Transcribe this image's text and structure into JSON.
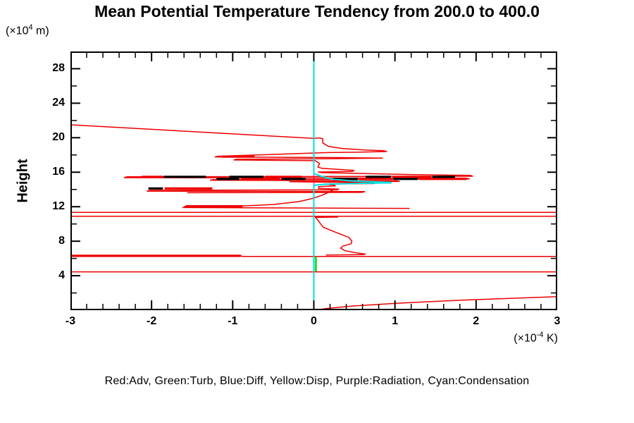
{
  "header": {
    "title": "Mean Potential Temperature Tendency from 200.0 to 400.0",
    "y_axis_units": {
      "prefix": "(×10",
      "sup": "4",
      "suffix": " m)"
    },
    "x_axis_units": {
      "prefix": "(×10",
      "sup": "-4",
      "suffix": " K)"
    }
  },
  "footer": {
    "legend": "Red:Adv, Green:Turb, Blue:Diff, Yellow:Disp, Purple:Radiation, Cyan:Condensation"
  },
  "colors": {
    "adv": "#ee0000",
    "turb": "#00dd00",
    "diff": "#000000",
    "radiation": "#cc77cc",
    "condensation": "#00e0e0",
    "axis": "#000000",
    "background": "#ffffff"
  },
  "chart_data": {
    "type": "line",
    "title": "Mean Potential Temperature Tendency from 200.0 to 400.0",
    "xlabel": "(x10^-4 K)",
    "ylabel": "Height",
    "ylabel_units": "(x10^4 m)",
    "xlim": [
      -3,
      3
    ],
    "ylim": [
      0,
      30
    ],
    "x_major_ticks": [
      -3,
      -2,
      -1,
      0,
      1,
      2,
      3
    ],
    "x_minor_step": 0.2,
    "y_major_ticks": [
      4,
      8,
      12,
      16,
      20,
      24,
      28
    ],
    "y_minor_step": 2,
    "grid": false,
    "legend_position": "bottom-text",
    "series": [
      {
        "name": "Radiation",
        "color": "#cc77cc",
        "width": 2,
        "polylines": [
          [
            [
              0.0,
              16.0
            ],
            [
              0.0,
              14.45
            ]
          ]
        ]
      },
      {
        "name": "Turb",
        "color": "#00dd00",
        "width": 2.5,
        "polylines": [
          [
            [
              0.025,
              6.15
            ],
            [
              0.025,
              4.4
            ]
          ]
        ]
      },
      {
        "name": "Adv",
        "color": "#ee0000",
        "width": 1.5,
        "polylines": [
          [
            [
              -3,
              21.5
            ],
            [
              -1.2,
              20.55
            ],
            [
              0,
              19.92
            ],
            [
              0.07,
              19.98
            ],
            [
              0.11,
              19.88
            ],
            [
              0.11,
              19.4
            ],
            [
              0.18,
              19.0
            ],
            [
              0.35,
              18.75
            ],
            [
              0.62,
              18.58
            ],
            [
              0.86,
              18.5
            ],
            [
              0.9,
              18.4
            ],
            [
              0.55,
              18.32
            ],
            [
              0.18,
              18.28
            ],
            [
              -1.18,
              17.85
            ],
            [
              -1.22,
              17.77
            ],
            [
              0.3,
              17.7
            ],
            [
              0.85,
              17.63
            ],
            [
              0.2,
              17.57
            ],
            [
              -0.95,
              17.5
            ],
            [
              -0.99,
              17.42
            ],
            [
              0.02,
              17.34
            ],
            [
              0.07,
              17.0
            ],
            [
              0.05,
              16.6
            ],
            [
              0.1,
              16.45
            ],
            [
              0.5,
              16.2
            ],
            [
              0.47,
              16.08
            ],
            [
              0.05,
              16.02
            ],
            [
              0.1,
              15.95
            ],
            [
              0.6,
              15.85
            ],
            [
              1.2,
              15.73
            ],
            [
              1.93,
              15.63
            ],
            [
              1.96,
              15.53
            ],
            [
              -2.3,
              15.47
            ],
            [
              -2.34,
              15.37
            ],
            [
              1.88,
              15.31
            ],
            [
              1.92,
              15.21
            ],
            [
              -1.24,
              15.15
            ],
            [
              -1.28,
              15.07
            ],
            [
              1.02,
              15.0
            ],
            [
              1.06,
              14.93
            ],
            [
              -0.3,
              14.9
            ],
            [
              0.4,
              14.82
            ],
            [
              0.73,
              14.76
            ],
            [
              0.75,
              14.68
            ],
            [
              0.12,
              14.62
            ],
            [
              0.24,
              14.52
            ],
            [
              0.27,
              14.42
            ],
            [
              0.06,
              14.32
            ],
            [
              0.06,
              14.12
            ],
            [
              0.31,
              14.04
            ],
            [
              0.29,
              13.95
            ],
            [
              -2.02,
              13.9
            ],
            [
              -2.06,
              13.81
            ],
            [
              0.63,
              13.75
            ],
            [
              0.6,
              13.67
            ],
            [
              -1.56,
              13.62
            ]
          ],
          [
            [
              -1.6,
              12.02
            ],
            [
              -0.9,
              12.07
            ],
            [
              -0.5,
              12.25
            ],
            [
              -0.18,
              12.6
            ],
            [
              0.0,
              13.0
            ],
            [
              0.12,
              13.4
            ],
            [
              0.2,
              13.75
            ],
            [
              0.24,
              13.95
            ]
          ],
          [
            [
              -1.62,
              11.9
            ],
            [
              -0.2,
              11.85
            ],
            [
              1.18,
              11.8
            ]
          ],
          [
            [
              -3,
              11.35
            ],
            [
              3,
              11.35
            ]
          ],
          [
            [
              -3,
              10.9
            ],
            [
              3,
              10.9
            ]
          ],
          [
            [
              0.3,
              10.8
            ],
            [
              0.02,
              10.76
            ],
            [
              0.05,
              10.45
            ],
            [
              0.08,
              10.05
            ],
            [
              0.12,
              9.6
            ],
            [
              0.28,
              9.0
            ],
            [
              0.43,
              8.45
            ],
            [
              0.47,
              8.0
            ],
            [
              0.46,
              7.7
            ],
            [
              0.36,
              7.45
            ],
            [
              0.33,
              7.2
            ],
            [
              0.38,
              6.9
            ],
            [
              0.52,
              6.65
            ],
            [
              0.64,
              6.5
            ],
            [
              0.6,
              6.44
            ],
            [
              0.15,
              6.4
            ]
          ],
          [
            [
              -3,
              6.3
            ],
            [
              -0.9,
              6.3
            ],
            [
              -0.88,
              6.24
            ],
            [
              3,
              6.24
            ]
          ],
          [
            [
              -3,
              4.45
            ],
            [
              3,
              4.45
            ]
          ],
          [
            [
              0.03,
              0.02
            ],
            [
              0.15,
              0.2
            ],
            [
              0.5,
              0.5
            ],
            [
              1.05,
              0.82
            ],
            [
              1.85,
              1.18
            ],
            [
              2.65,
              1.45
            ],
            [
              3,
              1.58
            ]
          ]
        ]
      },
      {
        "name": "Adv-thick-segments",
        "color": "#ee0000",
        "width": 3.2,
        "polylines": [
          [
            [
              -2.12,
              15.47
            ],
            [
              -1.86,
              15.47
            ]
          ],
          [
            [
              -0.6,
              15.47
            ],
            [
              -0.15,
              15.47
            ]
          ],
          [
            [
              0.97,
              15.47
            ],
            [
              1.45,
              15.47
            ]
          ],
          [
            [
              -0.9,
              15.22
            ],
            [
              -0.42,
              15.22
            ]
          ],
          [
            [
              0.56,
              15.22
            ],
            [
              0.97,
              15.22
            ]
          ],
          [
            [
              1.3,
              15.22
            ],
            [
              1.88,
              15.22
            ]
          ],
          [
            [
              -1.84,
              14.12
            ],
            [
              -1.25,
              14.12
            ]
          ],
          [
            [
              -1.12,
              17.8
            ],
            [
              -0.73,
              17.8
            ]
          ],
          [
            [
              -1.58,
              12.05
            ],
            [
              -0.88,
              12.05
            ]
          ],
          [
            [
              -3,
              6.3
            ],
            [
              -0.9,
              6.3
            ]
          ]
        ]
      },
      {
        "name": "Diff",
        "color": "#000000",
        "width": 3.2,
        "polylines": [
          [
            [
              -1.85,
              15.47
            ],
            [
              -1.33,
              15.47
            ]
          ],
          [
            [
              -1.04,
              15.47
            ],
            [
              -0.62,
              15.47
            ]
          ],
          [
            [
              0.64,
              15.47
            ],
            [
              0.95,
              15.47
            ]
          ],
          [
            [
              1.46,
              15.47
            ],
            [
              1.74,
              15.47
            ]
          ],
          [
            [
              -1.2,
              15.22
            ],
            [
              -0.92,
              15.22
            ]
          ],
          [
            [
              -0.4,
              15.22
            ],
            [
              -0.1,
              15.22
            ]
          ],
          [
            [
              0.24,
              15.22
            ],
            [
              0.54,
              15.22
            ]
          ],
          [
            [
              0.98,
              15.22
            ],
            [
              1.28,
              15.22
            ]
          ],
          [
            [
              -2.04,
              14.12
            ],
            [
              -1.86,
              14.12
            ]
          ]
        ]
      },
      {
        "name": "Condensation",
        "color": "#00e0e0",
        "width": 2,
        "polylines": [
          [
            [
              0,
              30
            ],
            [
              0,
              15.85
            ],
            [
              0.1,
              15.5
            ],
            [
              0.22,
              15.2
            ],
            [
              0.45,
              15.0
            ],
            [
              0.72,
              14.9
            ],
            [
              0.95,
              14.82
            ],
            [
              0.95,
              14.76
            ],
            [
              0.5,
              14.7
            ],
            [
              0.15,
              14.6
            ],
            [
              0.02,
              14.5
            ],
            [
              0,
              14.4
            ],
            [
              0,
              0
            ]
          ]
        ]
      }
    ]
  }
}
